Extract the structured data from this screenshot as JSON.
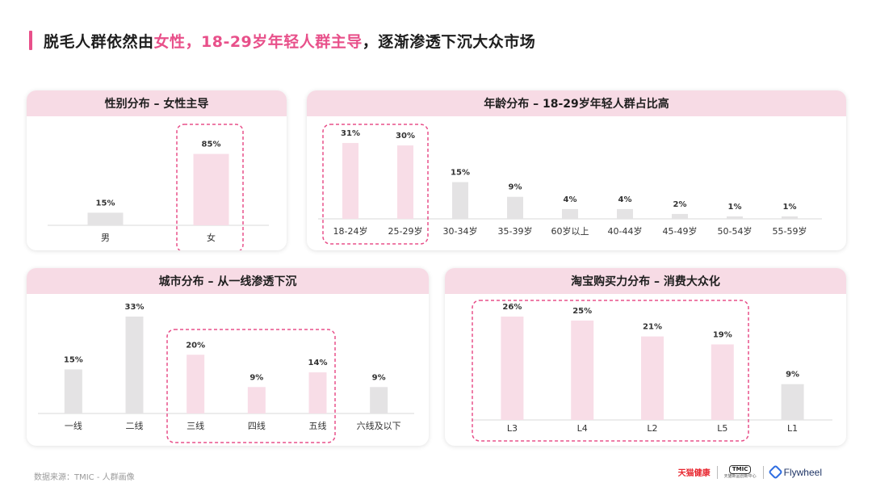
{
  "headline": {
    "part1": "脱毛人群依然由",
    "part2": "女性，18-29岁年轻人群主导",
    "part3": "，逐渐渗透下沉大众市场"
  },
  "footer": {
    "source": "数据来源：TMIC - 人群画像",
    "logo_tmall": "天猫健康",
    "logo_tmic": "TMIC",
    "logo_tmic_sub": "天猫新品创新中心",
    "logo_flywheel": "Flywheel"
  },
  "colors": {
    "accent": "#e8508a",
    "highlight_bar": "#f8dde7",
    "normal_bar": "#e4e3e4",
    "header_bg": "#f7dbe5"
  },
  "chart_data": [
    {
      "id": "gender",
      "type": "bar",
      "title": "性别分布 – 女性主导",
      "categories": [
        "男",
        "女"
      ],
      "values": [
        15,
        85
      ],
      "value_labels": [
        "15%",
        "85%"
      ],
      "highlighted": [
        false,
        true
      ],
      "ylim": [
        0,
        100
      ]
    },
    {
      "id": "age",
      "type": "bar",
      "title": "年龄分布 – 18-29岁年轻人群占比高",
      "categories": [
        "18-24岁",
        "25-29岁",
        "30-34岁",
        "35-39岁",
        "60岁以上",
        "40-44岁",
        "45-49岁",
        "50-54岁",
        "55-59岁"
      ],
      "values": [
        31,
        30,
        15,
        9,
        4,
        4,
        2,
        1,
        1
      ],
      "value_labels": [
        "31%",
        "30%",
        "15%",
        "9%",
        "4%",
        "4%",
        "2%",
        "1%",
        "1%"
      ],
      "highlighted": [
        true,
        true,
        false,
        false,
        false,
        false,
        false,
        false,
        false
      ],
      "ylim": [
        0,
        33
      ]
    },
    {
      "id": "city",
      "type": "bar",
      "title": "城市分布 – 从一线渗透下沉",
      "categories": [
        "一线",
        "二线",
        "三线",
        "四线",
        "五线",
        "六线及以下"
      ],
      "values": [
        15,
        33,
        20,
        9,
        14,
        9
      ],
      "value_labels": [
        "15%",
        "33%",
        "20%",
        "9%",
        "14%",
        "9%"
      ],
      "highlighted": [
        false,
        false,
        true,
        true,
        true,
        false
      ],
      "ylim": [
        0,
        33
      ]
    },
    {
      "id": "spending",
      "type": "bar",
      "title": "淘宝购买力分布 – 消费大众化",
      "categories": [
        "L3",
        "L4",
        "L2",
        "L5",
        "L1"
      ],
      "values": [
        26,
        25,
        21,
        19,
        9
      ],
      "value_labels": [
        "26%",
        "25%",
        "21%",
        "19%",
        "9%"
      ],
      "highlighted": [
        true,
        true,
        true,
        true,
        false
      ],
      "ylim": [
        0,
        26
      ]
    }
  ]
}
